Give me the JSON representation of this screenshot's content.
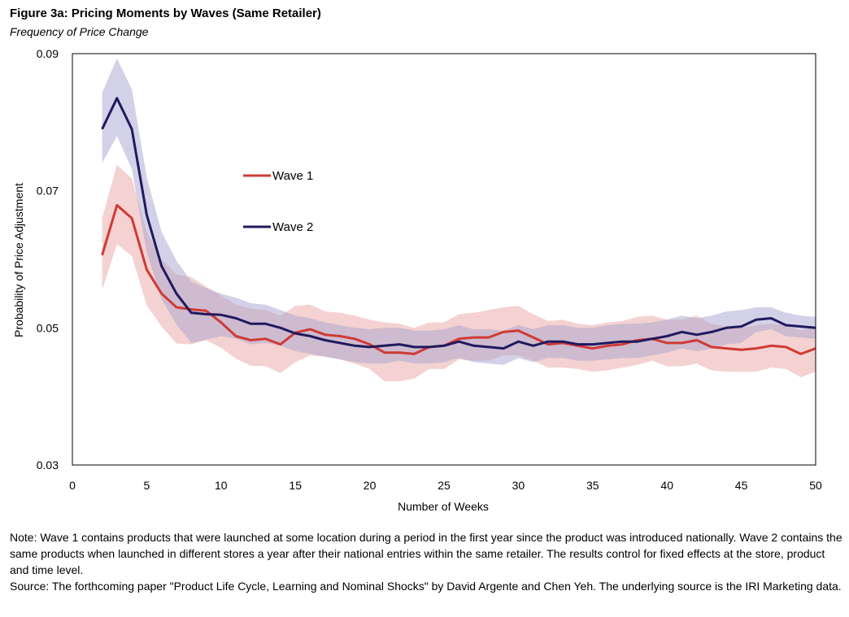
{
  "header": {
    "title": "Figure 3a: Pricing Moments by Waves (Same Retailer)",
    "subtitle": "Frequency of Price Change"
  },
  "notes": {
    "note": "Note: Wave 1 contains products that were launched at some location during a period in the first year since the product was introduced nationally. Wave 2 contains the same products when launched in different stores a year after their national entries within the same retailer. The results control for fixed effects at the store, product and time level.",
    "source": "Source: The forthcoming paper \"Product Life Cycle, Learning and Nominal Shocks\" by David Argente and Chen Yeh. The underlying source is the IRI Marketing data."
  },
  "chart_data": {
    "type": "line",
    "xlabel": "Number of Weeks",
    "ylabel": "Probability of Price Adjustment",
    "xlim": [
      0,
      50
    ],
    "ylim": [
      0.03,
      0.09
    ],
    "xticks": [
      "0",
      "5",
      "10",
      "15",
      "20",
      "25",
      "30",
      "35",
      "40",
      "45",
      "50"
    ],
    "yticks": [
      "0.03",
      "0.05",
      "0.07",
      "0.09"
    ],
    "x": [
      2,
      3,
      4,
      5,
      6,
      7,
      8,
      9,
      10,
      11,
      12,
      13,
      14,
      15,
      16,
      17,
      18,
      19,
      20,
      21,
      22,
      23,
      24,
      25,
      26,
      27,
      28,
      29,
      30,
      31,
      32,
      33,
      34,
      35,
      36,
      37,
      38,
      39,
      40,
      41,
      42,
      43,
      44,
      45,
      46,
      47,
      48,
      49,
      50
    ],
    "series": [
      {
        "name": "Wave 1",
        "color": "#d03a35",
        "band_color": "#e9a6a3",
        "values": [
          0.0606,
          0.0679,
          0.066,
          0.0585,
          0.055,
          0.053,
          0.0527,
          0.0525,
          0.0508,
          0.0488,
          0.0482,
          0.0484,
          0.0476,
          0.0493,
          0.0498,
          0.049,
          0.0488,
          0.0484,
          0.0476,
          0.0464,
          0.0464,
          0.0462,
          0.0472,
          0.0474,
          0.0484,
          0.0486,
          0.0486,
          0.0494,
          0.0496,
          0.0486,
          0.0476,
          0.0478,
          0.0474,
          0.047,
          0.0474,
          0.0476,
          0.0482,
          0.0484,
          0.0478,
          0.0478,
          0.0482,
          0.0472,
          0.047,
          0.0468,
          0.047,
          0.0474,
          0.0472,
          0.0462,
          0.047
        ],
        "upper": [
          0.066,
          0.0738,
          0.0718,
          0.064,
          0.06,
          0.0578,
          0.0574,
          0.056,
          0.0547,
          0.0534,
          0.0528,
          0.0526,
          0.0518,
          0.0532,
          0.0534,
          0.0524,
          0.0522,
          0.0518,
          0.0512,
          0.0508,
          0.0506,
          0.05,
          0.0508,
          0.0508,
          0.052,
          0.0522,
          0.0526,
          0.053,
          0.0532,
          0.052,
          0.051,
          0.0512,
          0.0506,
          0.0504,
          0.0508,
          0.051,
          0.0516,
          0.0518,
          0.0512,
          0.0512,
          0.0518,
          0.0506,
          0.0502,
          0.05,
          0.0504,
          0.0506,
          0.0504,
          0.0496,
          0.0502
        ],
        "lower": [
          0.0555,
          0.0622,
          0.0605,
          0.0533,
          0.0502,
          0.0477,
          0.0476,
          0.0482,
          0.0471,
          0.0455,
          0.0445,
          0.0444,
          0.0434,
          0.045,
          0.046,
          0.0458,
          0.0454,
          0.0448,
          0.044,
          0.0422,
          0.0422,
          0.0426,
          0.044,
          0.044,
          0.0454,
          0.0452,
          0.0452,
          0.046,
          0.046,
          0.0452,
          0.0442,
          0.0442,
          0.044,
          0.0436,
          0.0438,
          0.0442,
          0.0446,
          0.0452,
          0.0444,
          0.0444,
          0.0448,
          0.0438,
          0.0436,
          0.0436,
          0.0436,
          0.0442,
          0.044,
          0.0428,
          0.0436
        ]
      },
      {
        "name": "Wave 2",
        "color": "#201a5e",
        "band_color": "#a7a3cf",
        "values": [
          0.079,
          0.0835,
          0.079,
          0.0665,
          0.059,
          0.055,
          0.0522,
          0.052,
          0.0519,
          0.0514,
          0.0506,
          0.0506,
          0.05,
          0.0492,
          0.0488,
          0.0482,
          0.0478,
          0.0474,
          0.0472,
          0.0474,
          0.0476,
          0.0472,
          0.0472,
          0.0474,
          0.048,
          0.0474,
          0.0472,
          0.047,
          0.048,
          0.0474,
          0.048,
          0.048,
          0.0476,
          0.0476,
          0.0478,
          0.048,
          0.048,
          0.0484,
          0.0488,
          0.0494,
          0.049,
          0.0494,
          0.05,
          0.0502,
          0.0512,
          0.0514,
          0.0504,
          0.0502,
          0.05
        ],
        "upper": [
          0.0843,
          0.0893,
          0.0848,
          0.072,
          0.064,
          0.0598,
          0.0568,
          0.0558,
          0.055,
          0.0544,
          0.0536,
          0.0534,
          0.0526,
          0.0518,
          0.0514,
          0.0508,
          0.0504,
          0.05,
          0.0498,
          0.05,
          0.05,
          0.0496,
          0.0496,
          0.0498,
          0.0504,
          0.0498,
          0.0498,
          0.0496,
          0.0504,
          0.0498,
          0.0504,
          0.0504,
          0.05,
          0.05,
          0.0504,
          0.0506,
          0.0506,
          0.0508,
          0.0512,
          0.0518,
          0.0514,
          0.0518,
          0.0524,
          0.0526,
          0.053,
          0.053,
          0.0522,
          0.0518,
          0.0516
        ],
        "lower": [
          0.074,
          0.078,
          0.0732,
          0.061,
          0.0542,
          0.0505,
          0.0478,
          0.0483,
          0.0488,
          0.0484,
          0.0476,
          0.0478,
          0.0474,
          0.0466,
          0.0462,
          0.0458,
          0.0454,
          0.045,
          0.0448,
          0.0448,
          0.0452,
          0.0448,
          0.0448,
          0.045,
          0.0456,
          0.045,
          0.0448,
          0.0446,
          0.0456,
          0.045,
          0.0456,
          0.0456,
          0.0452,
          0.0452,
          0.0454,
          0.0456,
          0.0456,
          0.046,
          0.0464,
          0.047,
          0.0466,
          0.047,
          0.0476,
          0.0478,
          0.0494,
          0.0498,
          0.0488,
          0.0486,
          0.0484
        ]
      }
    ],
    "legend": {
      "placement": "center-left"
    },
    "grid": false
  }
}
